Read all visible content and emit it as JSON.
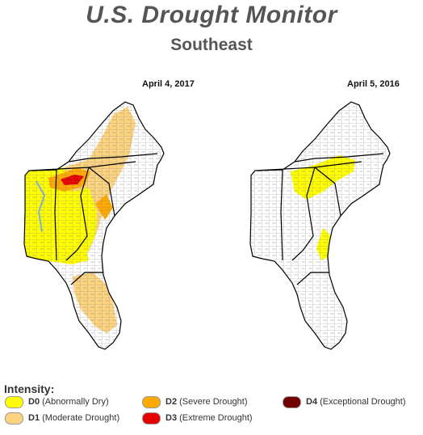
{
  "header": {
    "title": "U.S. Drought Monitor",
    "subtitle": "Southeast"
  },
  "maps": [
    {
      "date": "April 4, 2017"
    },
    {
      "date": "April 5, 2016"
    }
  ],
  "legend": {
    "title": "Intensity:",
    "items": [
      {
        "code": "D0",
        "label": "(Abnormally Dry)",
        "color": "#ffff00"
      },
      {
        "code": "D1",
        "label": "(Moderate Drought)",
        "color": "#fcd37f"
      },
      {
        "code": "D2",
        "label": "(Severe Drought)",
        "color": "#ffaa00"
      },
      {
        "code": "D3",
        "label": "(Extreme Drought)",
        "color": "#e60000"
      },
      {
        "code": "D4",
        "label": "(Exceptional Drought)",
        "color": "#730000"
      }
    ]
  },
  "colors": {
    "none": "#ffffff",
    "border": "#000000",
    "county_lines": "#777777",
    "water": "#7fb2e5"
  }
}
